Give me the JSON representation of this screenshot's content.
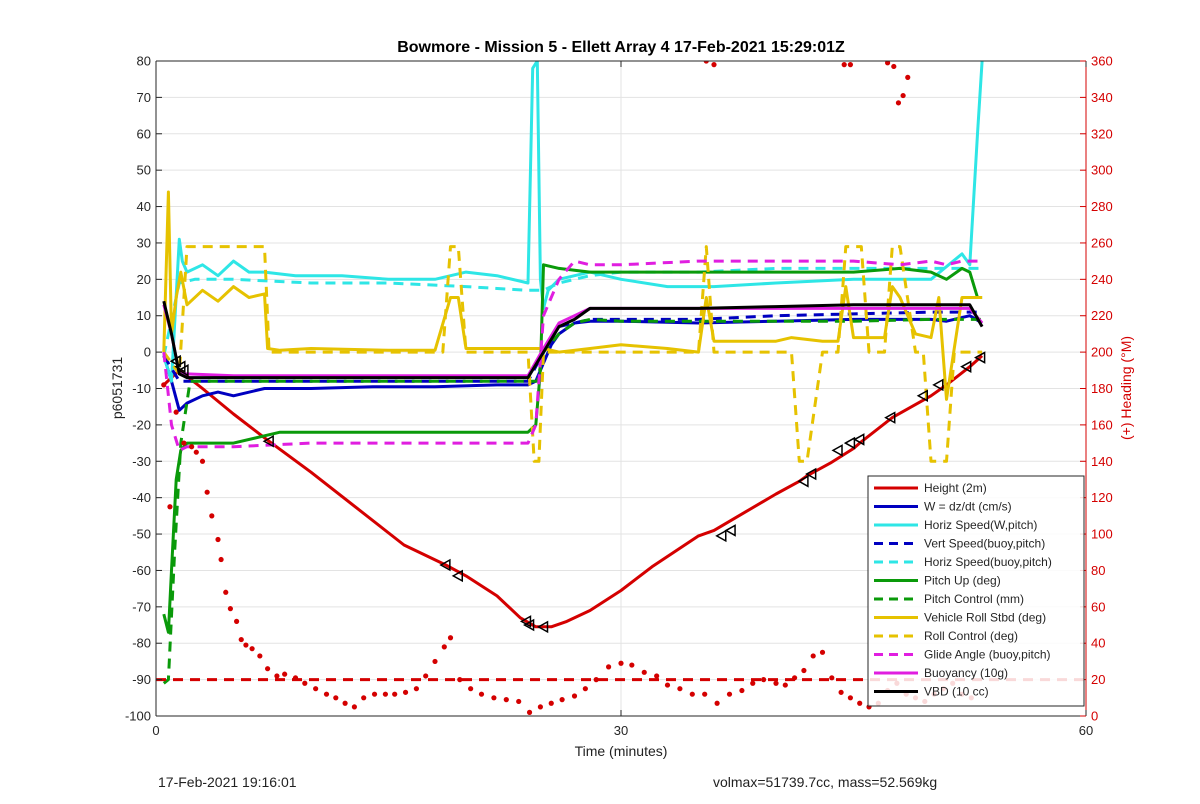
{
  "chart_data": {
    "type": "line",
    "title": "Bowmore - Mission 5 - Ellett Array 4 17-Feb-2021 15:29:01Z",
    "xlabel": "Time (minutes)",
    "ylabel": "p6051731",
    "y2label": "(+) Heading (°M)",
    "xlim": [
      0,
      60
    ],
    "ylim": [
      -100,
      80
    ],
    "y2lim": [
      0,
      360
    ],
    "xticks": [
      0,
      30,
      60
    ],
    "yticks": [
      -100,
      -90,
      -80,
      -70,
      -60,
      -50,
      -40,
      -30,
      -20,
      -10,
      0,
      10,
      20,
      30,
      40,
      50,
      60,
      70,
      80
    ],
    "y2ticks": [
      0,
      20,
      40,
      60,
      80,
      100,
      120,
      140,
      160,
      180,
      200,
      220,
      240,
      260,
      280,
      300,
      320,
      340,
      360
    ],
    "grid": true,
    "legend_position": "bottom-right",
    "colors": {
      "red": "#d40000",
      "blue": "#0000c0",
      "cyan": "#2ee6e6",
      "green": "#0a9a0a",
      "yellow": "#e6c200",
      "magenta": "#e01ee0",
      "black": "#000000",
      "right_axis": "#d40000"
    },
    "series": [
      {
        "name": "Height (2m)",
        "color": "#d40000",
        "style": "solid",
        "x": [
          0.5,
          1.5,
          3,
          5,
          7.3,
          10,
          13,
          16,
          18.7,
          20,
          22,
          23.5,
          24.5,
          25.5,
          26.5,
          28,
          30,
          32,
          35,
          36,
          38,
          40,
          41.5,
          42,
          43.5,
          45,
          45.4,
          47.5,
          50,
          51,
          52.5,
          53.3
        ],
        "y": [
          -9,
          -5,
          -10,
          -17,
          -24.5,
          -33,
          -43,
          -53,
          -58.5,
          -61.5,
          -67,
          -73,
          -75.5,
          -75.5,
          -74,
          -71,
          -65.5,
          -59,
          -50.5,
          -49,
          -44,
          -39,
          -35.5,
          -34,
          -30.5,
          -26.5,
          -25,
          -18,
          -12,
          -9,
          -4,
          -1
        ]
      },
      {
        "name": "W = dz/dt (cm/s)",
        "color": "#0000c0",
        "style": "solid",
        "x": [
          0.5,
          1,
          1.5,
          2,
          3,
          4,
          5,
          7,
          10,
          14,
          18,
          22,
          24,
          24.5,
          25,
          25.5,
          26,
          27,
          28,
          30,
          35,
          40,
          45,
          50,
          51,
          52.5,
          53.3
        ],
        "y": [
          -1,
          -8,
          -16,
          -14,
          -12,
          -11,
          -12,
          -10,
          -10,
          -9.5,
          -9.5,
          -9,
          -9,
          -8,
          -3,
          2,
          5,
          8,
          8.5,
          8.5,
          8,
          8.5,
          9,
          9,
          8.5,
          10,
          8
        ]
      },
      {
        "name": "Horiz Speed(W,pitch)",
        "color": "#2ee6e6",
        "style": "solid",
        "x": [
          0.5,
          1,
          1.5,
          1.7,
          2,
          3,
          4,
          5,
          6,
          7,
          9,
          12,
          15,
          18,
          20,
          22,
          24,
          24.3,
          24.6,
          24.8,
          25,
          25.3,
          26,
          27,
          28,
          30,
          33,
          36,
          40,
          45,
          50,
          52,
          52.5,
          53,
          53.3
        ],
        "y": [
          -1,
          -8,
          31,
          25,
          22,
          24,
          21,
          25,
          22,
          22,
          21,
          21,
          20,
          20,
          22,
          21,
          19,
          78,
          80,
          20,
          12,
          17,
          20,
          21,
          22,
          20,
          18,
          18,
          19,
          20,
          20,
          27,
          24,
          60,
          80
        ]
      },
      {
        "name": "Vert Speed(buoy,pitch)",
        "color": "#0000c0",
        "style": "dashed",
        "x": [
          0.5,
          1.5,
          2.5,
          5,
          10,
          15,
          20,
          24,
          25,
          26,
          28,
          30,
          35,
          40,
          45,
          50,
          52.5,
          53.3
        ],
        "y": [
          -1,
          -8,
          -8,
          -8,
          -8,
          -8,
          -8,
          -8,
          0,
          7,
          9,
          9,
          9,
          10,
          10.5,
          11,
          11,
          11
        ]
      },
      {
        "name": "Horiz Speed(buoy,pitch)",
        "color": "#2ee6e6",
        "style": "dashed",
        "x": [
          0.5,
          1.5,
          2.5,
          5,
          10,
          15,
          20,
          24,
          25,
          26,
          28,
          30,
          35,
          40,
          45,
          50,
          52.5,
          53.3
        ],
        "y": [
          -1,
          19,
          20,
          20,
          19,
          19,
          18,
          17,
          17,
          19,
          21,
          22,
          22,
          23,
          23,
          23,
          23,
          23
        ]
      },
      {
        "name": "Pitch Up (deg)",
        "color": "#0a9a0a",
        "style": "solid",
        "x": [
          0.5,
          0.8,
          1,
          1.3,
          1.6,
          2,
          3,
          5,
          7,
          8,
          10,
          15,
          20,
          23,
          24,
          24.5,
          24.8,
          25,
          26,
          28,
          30,
          35,
          40,
          45,
          48,
          50,
          51,
          52,
          52.5,
          53,
          53.3
        ],
        "y": [
          -72,
          -77,
          -60,
          -35,
          -27,
          -25,
          -25,
          -25,
          -23,
          -22,
          -22,
          -22,
          -22,
          -22,
          -22,
          -20,
          -5,
          24,
          23,
          22,
          22,
          22,
          22,
          22,
          23,
          22,
          20,
          23,
          22,
          15,
          15
        ]
      },
      {
        "name": "Pitch Control (mm)",
        "color": "#0a9a0a",
        "style": "dashed",
        "x": [
          0.5,
          0.8,
          1.2,
          1.6,
          2.2,
          3,
          5,
          10,
          15,
          20,
          24,
          24.6,
          25,
          26,
          27,
          28,
          30,
          35,
          40,
          45,
          50,
          53.3
        ],
        "y": [
          -91,
          -90,
          -55,
          -25,
          -8,
          -8,
          -8,
          -8,
          -8,
          -8,
          -8,
          -8,
          0,
          5,
          8,
          9,
          8.5,
          8.5,
          8.5,
          8.5,
          9,
          9
        ]
      },
      {
        "name": "Vehicle Roll Stbd (deg)",
        "color": "#e6c200",
        "style": "solid",
        "x": [
          0.5,
          0.8,
          1,
          1.3,
          1.6,
          2,
          3,
          4,
          5,
          6,
          7,
          7.2,
          8,
          10,
          15,
          18,
          19,
          19.5,
          20,
          21,
          23,
          24.4,
          25,
          26,
          28,
          30,
          33,
          35,
          35.5,
          36,
          38,
          40,
          41,
          43,
          44,
          44.5,
          45,
          47,
          47.5,
          48,
          49,
          50,
          50.5,
          51,
          52,
          53.3
        ],
        "y": [
          0,
          44,
          5,
          15,
          22,
          13,
          17,
          14,
          18,
          15,
          16,
          1,
          0.5,
          1,
          0.5,
          0.5,
          15,
          15,
          1,
          1,
          1,
          1,
          1,
          0,
          1,
          2,
          1,
          0,
          15,
          3,
          3,
          3,
          4,
          3,
          3,
          18,
          4,
          4,
          18,
          15,
          5,
          4,
          15,
          -13,
          15,
          15
        ]
      },
      {
        "name": "Roll Control (deg)",
        "color": "#e6c200",
        "style": "dashed",
        "x": [
          0.5,
          1,
          1.5,
          2,
          2.5,
          7,
          7.3,
          10,
          15,
          18.5,
          19,
          19.5,
          20,
          24,
          24.4,
          24.7,
          25,
          28,
          30,
          35,
          35.5,
          36,
          40,
          41,
          41.5,
          42,
          43,
          44,
          44.5,
          45.5,
          46,
          47,
          47.5,
          48,
          49,
          49.5,
          50,
          51,
          51.5,
          52,
          53.3
        ],
        "y": [
          0,
          -3,
          -6,
          29,
          29,
          29,
          0,
          0,
          0,
          0,
          29,
          29,
          0,
          0,
          -30,
          -30,
          0,
          0,
          0,
          0,
          29,
          0,
          0,
          0,
          -30,
          -30,
          0,
          0,
          29,
          29,
          0,
          0,
          29,
          29,
          0,
          0,
          -30,
          -30,
          0,
          0,
          0
        ]
      },
      {
        "name": "Glide Angle (buoy,pitch)",
        "color": "#e01ee0",
        "style": "dashed",
        "x": [
          0.5,
          1,
          1.5,
          2,
          3,
          5,
          10,
          15,
          20,
          24,
          24.5,
          25,
          26,
          27,
          28,
          30,
          35,
          40,
          45,
          48,
          50,
          51,
          52,
          53.3
        ],
        "y": [
          0,
          -20,
          -27,
          -26,
          -26,
          -26,
          -25,
          -25,
          -25,
          -25,
          -20,
          10,
          20,
          25,
          24,
          24,
          25,
          25,
          25,
          24,
          25,
          24,
          25,
          25
        ]
      },
      {
        "name": "Buoyancy (10g)",
        "color": "#e01ee0",
        "style": "solid",
        "x": [
          0.5,
          1,
          1.5,
          2,
          5,
          10,
          15,
          20,
          24,
          25,
          26,
          27,
          28,
          30,
          35,
          40,
          45,
          50,
          52.5,
          53.3
        ],
        "y": [
          13,
          5,
          -6,
          -6,
          -6.5,
          -6.5,
          -6.5,
          -6.5,
          -6.5,
          1,
          8,
          10,
          12,
          12,
          12,
          12,
          12,
          12,
          12,
          8
        ]
      },
      {
        "name": "VBD (10 cc)",
        "color": "#000000",
        "style": "solid",
        "x": [
          0.5,
          1,
          1.5,
          2,
          5,
          10,
          15,
          20,
          24,
          25,
          26,
          27,
          28,
          30,
          35,
          40,
          45,
          50,
          52.5,
          53.3
        ],
        "y": [
          14,
          5,
          -6,
          -7,
          -7,
          -7,
          -7,
          -7,
          -7,
          0,
          7,
          9,
          12,
          12,
          12,
          12.5,
          13,
          13,
          13,
          7
        ]
      },
      {
        "name": "",
        "color": "#d40000",
        "style": "dashed",
        "axis": "left",
        "x": [
          0,
          60
        ],
        "y": [
          -90,
          -90
        ]
      },
      {
        "name": "",
        "color": "#d40000",
        "style": "dots",
        "axis": "right",
        "x": [
          0.5,
          0.9,
          1.3,
          1.8,
          2.3,
          2.6,
          3,
          3.3,
          3.6,
          4,
          4.2,
          4.5,
          4.8,
          5.2,
          5.5,
          5.8,
          6.2,
          6.7,
          7.2,
          7.8,
          8.3,
          9,
          9.6,
          10.3,
          11,
          11.6,
          12.2,
          12.8,
          13.4,
          14.1,
          14.8,
          15.4,
          16.1,
          16.8,
          17.4,
          18,
          18.6,
          19,
          19.6,
          20.3,
          21,
          21.8,
          22.6,
          23.4,
          24.1,
          24.8,
          25.5,
          26.2,
          27,
          27.7,
          28.4,
          29.2,
          30,
          30.7,
          31.5,
          32.3,
          33,
          33.8,
          34.6,
          35.4,
          36.2,
          37,
          37.8,
          38.5,
          39.2,
          40,
          40.6,
          41.2,
          41.8,
          42.4,
          43,
          43.6,
          44.2,
          44.8,
          45.4,
          46,
          46.6,
          47.2,
          47.8,
          48.4,
          49,
          49.6,
          50.2,
          50.8,
          51.4,
          52,
          52.6,
          35.5,
          36,
          44.4,
          44.8,
          47.2,
          47.6,
          47.9,
          48.2,
          48.5
        ],
        "y": [
          182,
          115,
          167,
          150,
          148,
          145,
          140,
          123,
          110,
          97,
          86,
          68,
          59,
          52,
          42,
          39,
          37,
          33,
          26,
          22,
          23,
          21,
          18,
          15,
          12,
          10,
          7,
          5,
          10,
          12,
          12,
          12,
          13,
          15,
          22,
          30,
          38,
          43,
          20,
          15,
          12,
          10,
          9,
          8,
          2,
          5,
          7,
          9,
          11,
          15,
          20,
          27,
          29,
          28,
          24,
          22,
          17,
          15,
          12,
          12,
          7,
          12,
          14,
          18,
          20,
          18,
          17,
          21,
          25,
          33,
          35,
          21,
          13,
          10,
          7,
          5,
          7,
          14,
          18,
          12,
          10,
          8,
          12,
          15,
          18,
          12,
          10,
          360,
          358,
          358,
          358,
          359,
          357,
          337,
          341,
          351
        ]
      }
    ],
    "markers": {
      "symbol": "left-triangle",
      "color": "#000000",
      "x": [
        1.3,
        1.6,
        1.8,
        7.3,
        18.7,
        19.5,
        23.9,
        24.1,
        25,
        36.5,
        37.1,
        41.8,
        42.3,
        44,
        44.8,
        45.4,
        47.4,
        49.5,
        50.5,
        52.3,
        53.2
      ],
      "y": [
        -2.5,
        -4,
        -5,
        -24.5,
        -58.5,
        -61.5,
        -74,
        -75,
        -75.5,
        -50.5,
        -49,
        -35.5,
        -33.5,
        -27,
        -25,
        -24,
        -18,
        -12,
        -9,
        -4,
        -1.5
      ]
    }
  },
  "footer": {
    "left": "17-Feb-2021 19:16:01",
    "right": "volmax=51739.7cc, mass=52.569kg"
  }
}
